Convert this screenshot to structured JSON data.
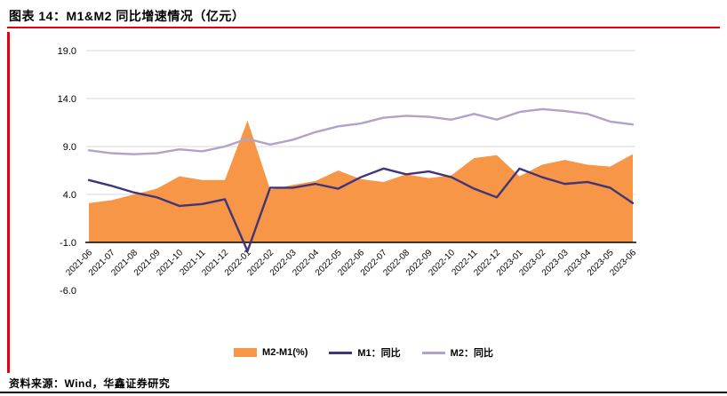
{
  "header": {
    "title": "图表 14：M1&M2 同比增速情况（亿元）"
  },
  "footer": {
    "source": "资料来源：Wind，华鑫证券研究"
  },
  "colors": {
    "accent_red": "#E60012",
    "grid": "#D9D9D9",
    "axis": "#000000",
    "text": "#000000"
  },
  "chart_data": {
    "type": "area",
    "title": "M1&M2 同比增速情况（亿元）",
    "xlabel": "",
    "ylabel": "",
    "ylim": [
      -6,
      19
    ],
    "yticks": [
      "19.0",
      "14.0",
      "9.0",
      "4.0",
      "-1.0",
      "-6.0"
    ],
    "baseline": -1,
    "grid": true,
    "legend_position": "bottom",
    "categories": [
      "2021-06",
      "2021-07",
      "2021-08",
      "2021-09",
      "2021-10",
      "2021-11",
      "2021-12",
      "2022-01",
      "2022-02",
      "2022-03",
      "2022-04",
      "2022-05",
      "2022-06",
      "2022-07",
      "2022-08",
      "2022-09",
      "2022-10",
      "2022-11",
      "2022-12",
      "2023-01",
      "2023-02",
      "2023-03",
      "2023-04",
      "2023-05",
      "2023-06"
    ],
    "series": [
      {
        "name": "M2-M1(%)",
        "type": "area",
        "color": "#F79646",
        "values": [
          3.1,
          3.4,
          4.0,
          4.6,
          5.9,
          5.5,
          5.5,
          11.7,
          4.5,
          5.0,
          5.4,
          6.5,
          5.6,
          5.3,
          6.1,
          5.7,
          6.0,
          7.8,
          8.1,
          5.9,
          7.1,
          7.6,
          7.1,
          6.9,
          8.2
        ]
      },
      {
        "name": "M1：同比",
        "type": "line",
        "color": "#413577",
        "values": [
          5.5,
          4.9,
          4.2,
          3.7,
          2.8,
          3.0,
          3.5,
          -1.9,
          4.7,
          4.7,
          5.1,
          4.6,
          5.8,
          6.7,
          6.1,
          6.4,
          5.8,
          4.6,
          3.7,
          6.7,
          5.8,
          5.1,
          5.3,
          4.7,
          3.1
        ]
      },
      {
        "name": "M2：同比",
        "type": "line",
        "color": "#B3A2C7",
        "values": [
          8.6,
          8.3,
          8.2,
          8.3,
          8.7,
          8.5,
          9.0,
          9.8,
          9.2,
          9.7,
          10.5,
          11.1,
          11.4,
          12.0,
          12.2,
          12.1,
          11.8,
          12.4,
          11.8,
          12.6,
          12.9,
          12.7,
          12.4,
          11.6,
          11.3
        ]
      }
    ]
  }
}
